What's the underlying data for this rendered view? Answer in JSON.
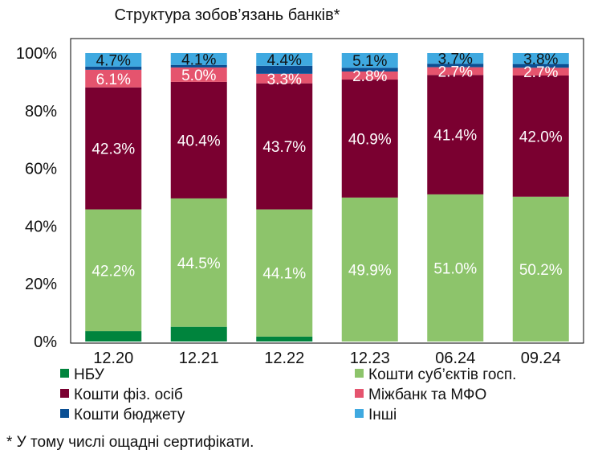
{
  "chart_data": {
    "type": "bar",
    "stacked": true,
    "title": "Структура зобов’язань банків*",
    "categories": [
      "12.20",
      "12.21",
      "12.22",
      "12.23",
      "06.24",
      "09.24"
    ],
    "y_ticks": [
      "0%",
      "20%",
      "40%",
      "60%",
      "80%",
      "100%"
    ],
    "ylim": [
      0,
      100
    ],
    "series": [
      {
        "name": "НБУ",
        "color": "#00843D",
        "values": [
          3.6,
          5.1,
          1.7,
          0.0,
          0.0,
          0.0
        ],
        "labels": [
          "",
          "",
          "",
          "",
          "",
          ""
        ]
      },
      {
        "name": "Кошти суб’єктів госп.",
        "color": "#8DC46B",
        "values": [
          42.2,
          44.5,
          44.1,
          49.9,
          51.0,
          50.2
        ],
        "labels": [
          "42.2%",
          "44.5%",
          "44.1%",
          "49.9%",
          "51.0%",
          "50.2%"
        ]
      },
      {
        "name": "Кошти фіз. осіб",
        "color": "#7A0030",
        "values": [
          42.3,
          40.4,
          43.7,
          40.9,
          41.4,
          42.0
        ],
        "labels": [
          "42.3%",
          "40.4%",
          "43.7%",
          "40.9%",
          "41.4%",
          "42.0%"
        ]
      },
      {
        "name": "Міжбанк та МФО",
        "color": "#E5546E",
        "values": [
          6.1,
          5.0,
          3.3,
          2.8,
          2.7,
          2.7
        ],
        "labels": [
          "6.1%",
          "5.0%",
          "3.3%",
          "2.8%",
          "2.7%",
          "2.7%"
        ]
      },
      {
        "name": "Кошти бюджету",
        "color": "#0B4F93",
        "values": [
          1.1,
          0.9,
          2.8,
          1.3,
          1.2,
          1.3
        ],
        "labels": [
          "",
          "",
          "",
          "",
          "",
          ""
        ]
      },
      {
        "name": "Інші",
        "color": "#3FA9E0",
        "values": [
          4.7,
          4.1,
          4.4,
          5.1,
          3.7,
          3.8
        ],
        "labels": [
          "4.7%",
          "4.1%",
          "4.4%",
          "5.1%",
          "3.7%",
          "3.8%"
        ]
      }
    ],
    "legend_position": "bottom"
  },
  "footnote": "* У тому числі ощадні сертифікати."
}
